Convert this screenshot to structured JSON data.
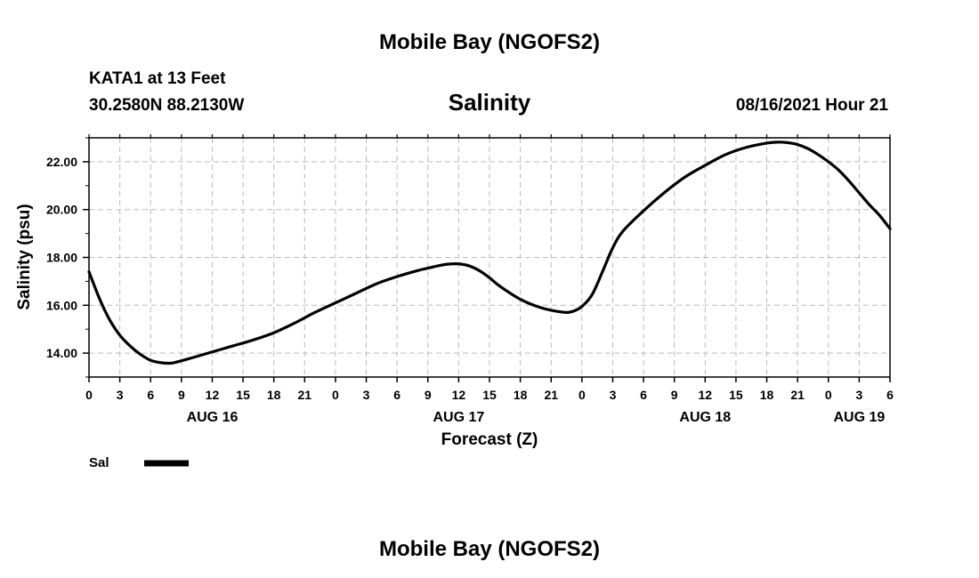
{
  "header": {
    "top_title": "Mobile Bay (NGOFS2)",
    "station_line": "KATA1 at 13 Feet",
    "coords_line": "30.2580N  88.2130W",
    "date_line": "08/16/2021 Hour 21"
  },
  "footer": {
    "bottom_title": "Mobile Bay (NGOFS2)"
  },
  "legend": {
    "label": "Sal",
    "color": "#000000"
  },
  "chart_data": {
    "type": "line",
    "title": "Salinity",
    "xlabel": "Forecast (Z)",
    "ylabel": "Salinity (psu)",
    "x_unit": "hours from 00Z AUG 16",
    "xlim": [
      0,
      78
    ],
    "ylim": [
      13.0,
      23.0
    ],
    "grid": true,
    "legend_placement": "bottom-left",
    "y_ticks": [
      14,
      16,
      18,
      20,
      22
    ],
    "y_tick_labels": [
      "14.00",
      "16.00",
      "18.00",
      "20.00",
      "22.00"
    ],
    "x_ticks": [
      0,
      3,
      6,
      9,
      12,
      15,
      18,
      21,
      24,
      27,
      30,
      33,
      36,
      39,
      42,
      45,
      48,
      51,
      54,
      57,
      60,
      63,
      66,
      69,
      72,
      75,
      78
    ],
    "x_tick_labels": [
      "0",
      "3",
      "6",
      "9",
      "12",
      "15",
      "18",
      "21",
      "0",
      "3",
      "6",
      "9",
      "12",
      "15",
      "18",
      "21",
      "0",
      "3",
      "6",
      "9",
      "12",
      "15",
      "18",
      "21",
      "0",
      "3",
      "6"
    ],
    "day_labels": [
      {
        "x": 12,
        "label": "AUG 16"
      },
      {
        "x": 36,
        "label": "AUG 17"
      },
      {
        "x": 60,
        "label": "AUG 18"
      },
      {
        "x": 75,
        "label": "AUG 19"
      }
    ],
    "series": [
      {
        "name": "Sal",
        "color": "#000000",
        "x": [
          0,
          1,
          2,
          3,
          4,
          5,
          6,
          7,
          8,
          9,
          10,
          12,
          14,
          16,
          18,
          20,
          22,
          24,
          26,
          28,
          30,
          32,
          33,
          34,
          35,
          36,
          37,
          38,
          39,
          40,
          42,
          44,
          46,
          47,
          48,
          49,
          50,
          51,
          52,
          54,
          56,
          58,
          60,
          62,
          64,
          66,
          67,
          68,
          69,
          70,
          71,
          72,
          73,
          74,
          75,
          76,
          77,
          78
        ],
        "y": [
          17.4,
          16.3,
          15.4,
          14.75,
          14.3,
          13.95,
          13.7,
          13.6,
          13.58,
          13.68,
          13.8,
          14.05,
          14.3,
          14.55,
          14.85,
          15.25,
          15.7,
          16.1,
          16.5,
          16.9,
          17.2,
          17.45,
          17.55,
          17.65,
          17.72,
          17.73,
          17.65,
          17.45,
          17.15,
          16.8,
          16.25,
          15.9,
          15.72,
          15.73,
          15.95,
          16.45,
          17.4,
          18.4,
          19.1,
          19.95,
          20.7,
          21.35,
          21.85,
          22.3,
          22.6,
          22.78,
          22.82,
          22.8,
          22.72,
          22.55,
          22.3,
          22.0,
          21.65,
          21.2,
          20.7,
          20.2,
          19.75,
          19.2
        ]
      }
    ]
  }
}
